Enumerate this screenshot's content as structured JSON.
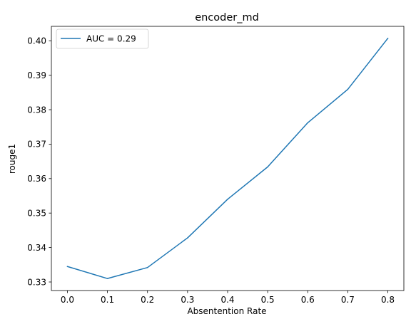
{
  "chart_data": {
    "type": "line",
    "title": "encoder_md",
    "xlabel": "Absentention Rate",
    "ylabel": "rouge1",
    "x": [
      0.0,
      0.1,
      0.2,
      0.3,
      0.4,
      0.5,
      0.6,
      0.7,
      0.8
    ],
    "series": [
      {
        "name": "AUC = 0.29",
        "color": "#1f77b4",
        "values": [
          0.3345,
          0.331,
          0.3342,
          0.3428,
          0.354,
          0.3634,
          0.3762,
          0.3859,
          0.4007
        ]
      }
    ],
    "xticks": [
      "0.0",
      "0.1",
      "0.2",
      "0.3",
      "0.4",
      "0.5",
      "0.6",
      "0.7",
      "0.8"
    ],
    "yticks": [
      "0.33",
      "0.34",
      "0.35",
      "0.36",
      "0.37",
      "0.38",
      "0.39",
      "0.40"
    ],
    "xlim": [
      -0.04,
      0.84
    ],
    "ylim": [
      0.32752,
      0.40418
    ],
    "grid": false,
    "legend_position": "upper-left"
  }
}
